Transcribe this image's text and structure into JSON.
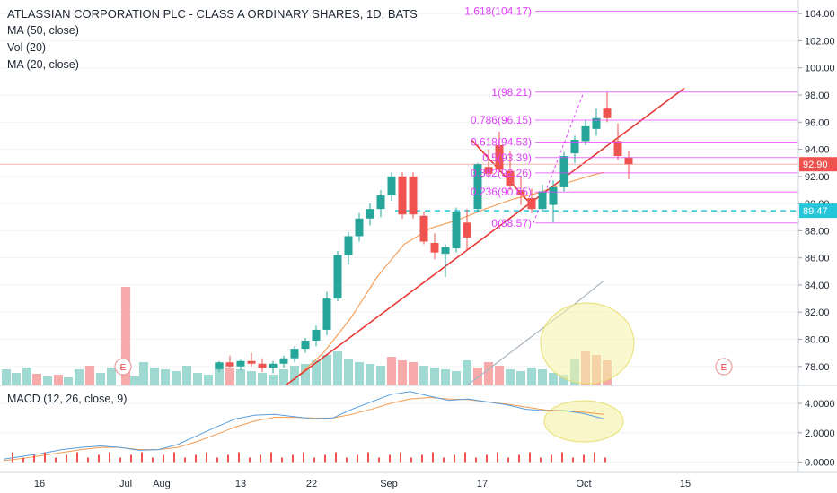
{
  "chart_data": {
    "type": "candlestick",
    "title": "ATLASSIAN CORPORATION PLC - CLASS A ORDINARY SHARES, 1D, BATS",
    "indicators": [
      "MA (50, close)",
      "Vol (20)",
      "MA (20, close)"
    ],
    "x_labels": [
      "16",
      "Jul",
      "Aug",
      "13",
      "22",
      "Sep",
      "17",
      "Oct",
      "15"
    ],
    "price_axis": {
      "ticks": [
        "78.00",
        "80.00",
        "82.00",
        "84.00",
        "86.00",
        "88.00",
        "90.00",
        "92.00",
        "94.00",
        "96.00",
        "98.00",
        "100.00",
        "102.00",
        "104.00"
      ],
      "range": [
        76.6,
        105.0
      ]
    },
    "price_labels": [
      {
        "value": 92.9,
        "text": "92.90",
        "color": "#ef5350"
      },
      {
        "value": 89.47,
        "text": "89.47",
        "color": "#26c6da"
      }
    ],
    "fibonacci": {
      "levels": [
        {
          "label": "1.618(104.17)",
          "price": 104.17
        },
        {
          "label": "1(98.21)",
          "price": 98.21
        },
        {
          "label": "0.786(96.15)",
          "price": 96.15
        },
        {
          "label": "0.618(94.53)",
          "price": 94.53
        },
        {
          "label": "0.5(93.39)",
          "price": 93.39
        },
        {
          "label": "0.382(92.26)",
          "price": 92.26
        },
        {
          "label": "0.236(90.85)",
          "price": 90.85
        },
        {
          "label": "0(88.57)",
          "price": 88.57
        }
      ],
      "color": "#e040fb"
    },
    "earnings_markers": [
      "E",
      "E"
    ],
    "candles": [
      [
        "Sep 5",
        92.0,
        92.3,
        88.9,
        89.2
      ],
      [
        "Sep 6",
        89.1,
        89.4,
        87.0,
        87.2
      ],
      [
        "Sep 7",
        87.1,
        87.8,
        85.9,
        86.4
      ],
      [
        "Sep 10",
        86.3,
        87.0,
        84.6,
        86.8
      ],
      [
        "Sep 11",
        86.7,
        89.7,
        86.4,
        89.4
      ],
      [
        "Sep 12",
        88.6,
        89.6,
        86.5,
        87.5
      ],
      [
        "Sep 13",
        89.6,
        93.0,
        89.4,
        92.9
      ],
      [
        "Sep 14",
        92.7,
        94.0,
        91.9,
        92.2
      ],
      [
        "Sep 17",
        94.3,
        95.3,
        92.3,
        92.5
      ],
      [
        "Sep 18",
        92.4,
        93.9,
        91.0,
        91.3
      ],
      [
        "Sep 19",
        91.0,
        92.0,
        89.9,
        90.6
      ],
      [
        "Sep 20",
        90.4,
        91.1,
        89.3,
        89.6
      ],
      [
        "Sep 21",
        89.6,
        91.4,
        89.4,
        90.9
      ],
      [
        "Sep 24",
        89.9,
        91.7,
        88.6,
        91.2
      ],
      [
        "Sep 25",
        91.2,
        93.8,
        90.9,
        93.5
      ],
      [
        "Sep 26",
        93.7,
        95.0,
        93.0,
        94.7
      ],
      [
        "Sep 27",
        94.6,
        96.2,
        94.3,
        95.7
      ],
      [
        "Sep 28",
        95.5,
        97.0,
        95.0,
        96.3
      ],
      [
        "Oct 1",
        97.0,
        98.2,
        96.0,
        96.3
      ],
      [
        "Oct 2",
        94.6,
        95.9,
        93.2,
        93.5
      ],
      [
        "Oct 3",
        93.4,
        93.9,
        91.8,
        92.9
      ]
    ],
    "volume_axis": "volume bars at bottom of price pane",
    "macd": {
      "title": "MACD (12, 26, close, 9)",
      "ticks": [
        "0.0000",
        "2.0000",
        "4.0000"
      ],
      "range": [
        -0.7,
        5.1
      ],
      "macd_line": [
        0.2,
        0.4,
        0.6,
        0.85,
        1.0,
        1.1,
        1.0,
        0.8,
        0.85,
        1.2,
        1.8,
        2.4,
        2.95,
        3.2,
        3.25,
        3.1,
        2.95,
        3.0,
        3.6,
        4.1,
        4.6,
        4.8,
        4.5,
        4.2,
        4.3,
        4.1,
        3.9,
        3.6,
        3.5,
        3.5,
        3.3,
        2.95
      ],
      "signal_line": [
        0.1,
        0.25,
        0.45,
        0.65,
        0.85,
        1.0,
        1.0,
        0.85,
        0.85,
        1.0,
        1.4,
        1.9,
        2.4,
        2.8,
        3.05,
        3.05,
        3.0,
        3.0,
        3.25,
        3.6,
        4.0,
        4.3,
        4.4,
        4.3,
        4.25,
        4.1,
        3.95,
        3.75,
        3.55,
        3.5,
        3.4,
        3.25
      ]
    },
    "colors": {
      "up": "#26a69a",
      "down": "#ef5350",
      "fib": "#e040fb",
      "trend": "#e53935",
      "hline": "#26c6da",
      "ma20": "#f6a05a",
      "ma50": "#a8b4bf",
      "macd": "#5aa0e0",
      "signal": "#f39c50",
      "highlight": "#f5f2a6"
    }
  }
}
